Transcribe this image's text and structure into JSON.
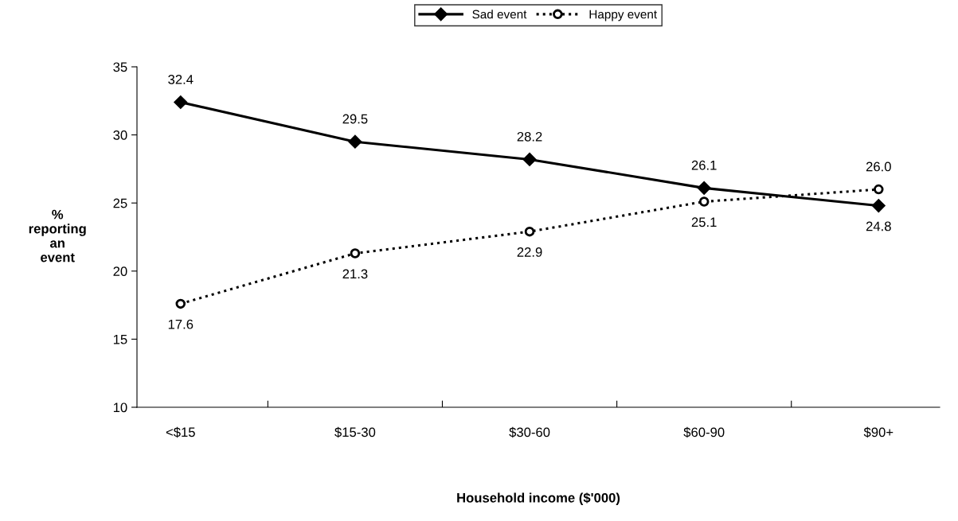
{
  "chart_data": {
    "type": "line",
    "xlabel": "Household income ($'000)",
    "ylabel": "%\nreporting\nan\nevent",
    "categories": [
      "<$15",
      "$15-30",
      "$30-60",
      "$60-90",
      "$90+"
    ],
    "series": [
      {
        "name": "Sad event",
        "color": "#000000",
        "values": [
          32.4,
          29.5,
          28.2,
          26.1,
          24.8
        ],
        "marker": "diamond",
        "line_style": "solid",
        "value_labels": [
          "32.4",
          "29.5",
          "28.2",
          "26.1",
          "24.8"
        ]
      },
      {
        "name": "Happy event",
        "color": "#000000",
        "values": [
          17.6,
          21.3,
          22.9,
          25.1,
          26.0
        ],
        "marker": "circle",
        "line_style": "dotted",
        "value_labels": [
          "17.6",
          "21.3",
          "22.9",
          "25.1",
          "26.0"
        ]
      }
    ],
    "ylim": [
      10,
      35
    ],
    "yticks": [
      10,
      15,
      20,
      25,
      30,
      35
    ],
    "grid": false,
    "legend": "top"
  }
}
